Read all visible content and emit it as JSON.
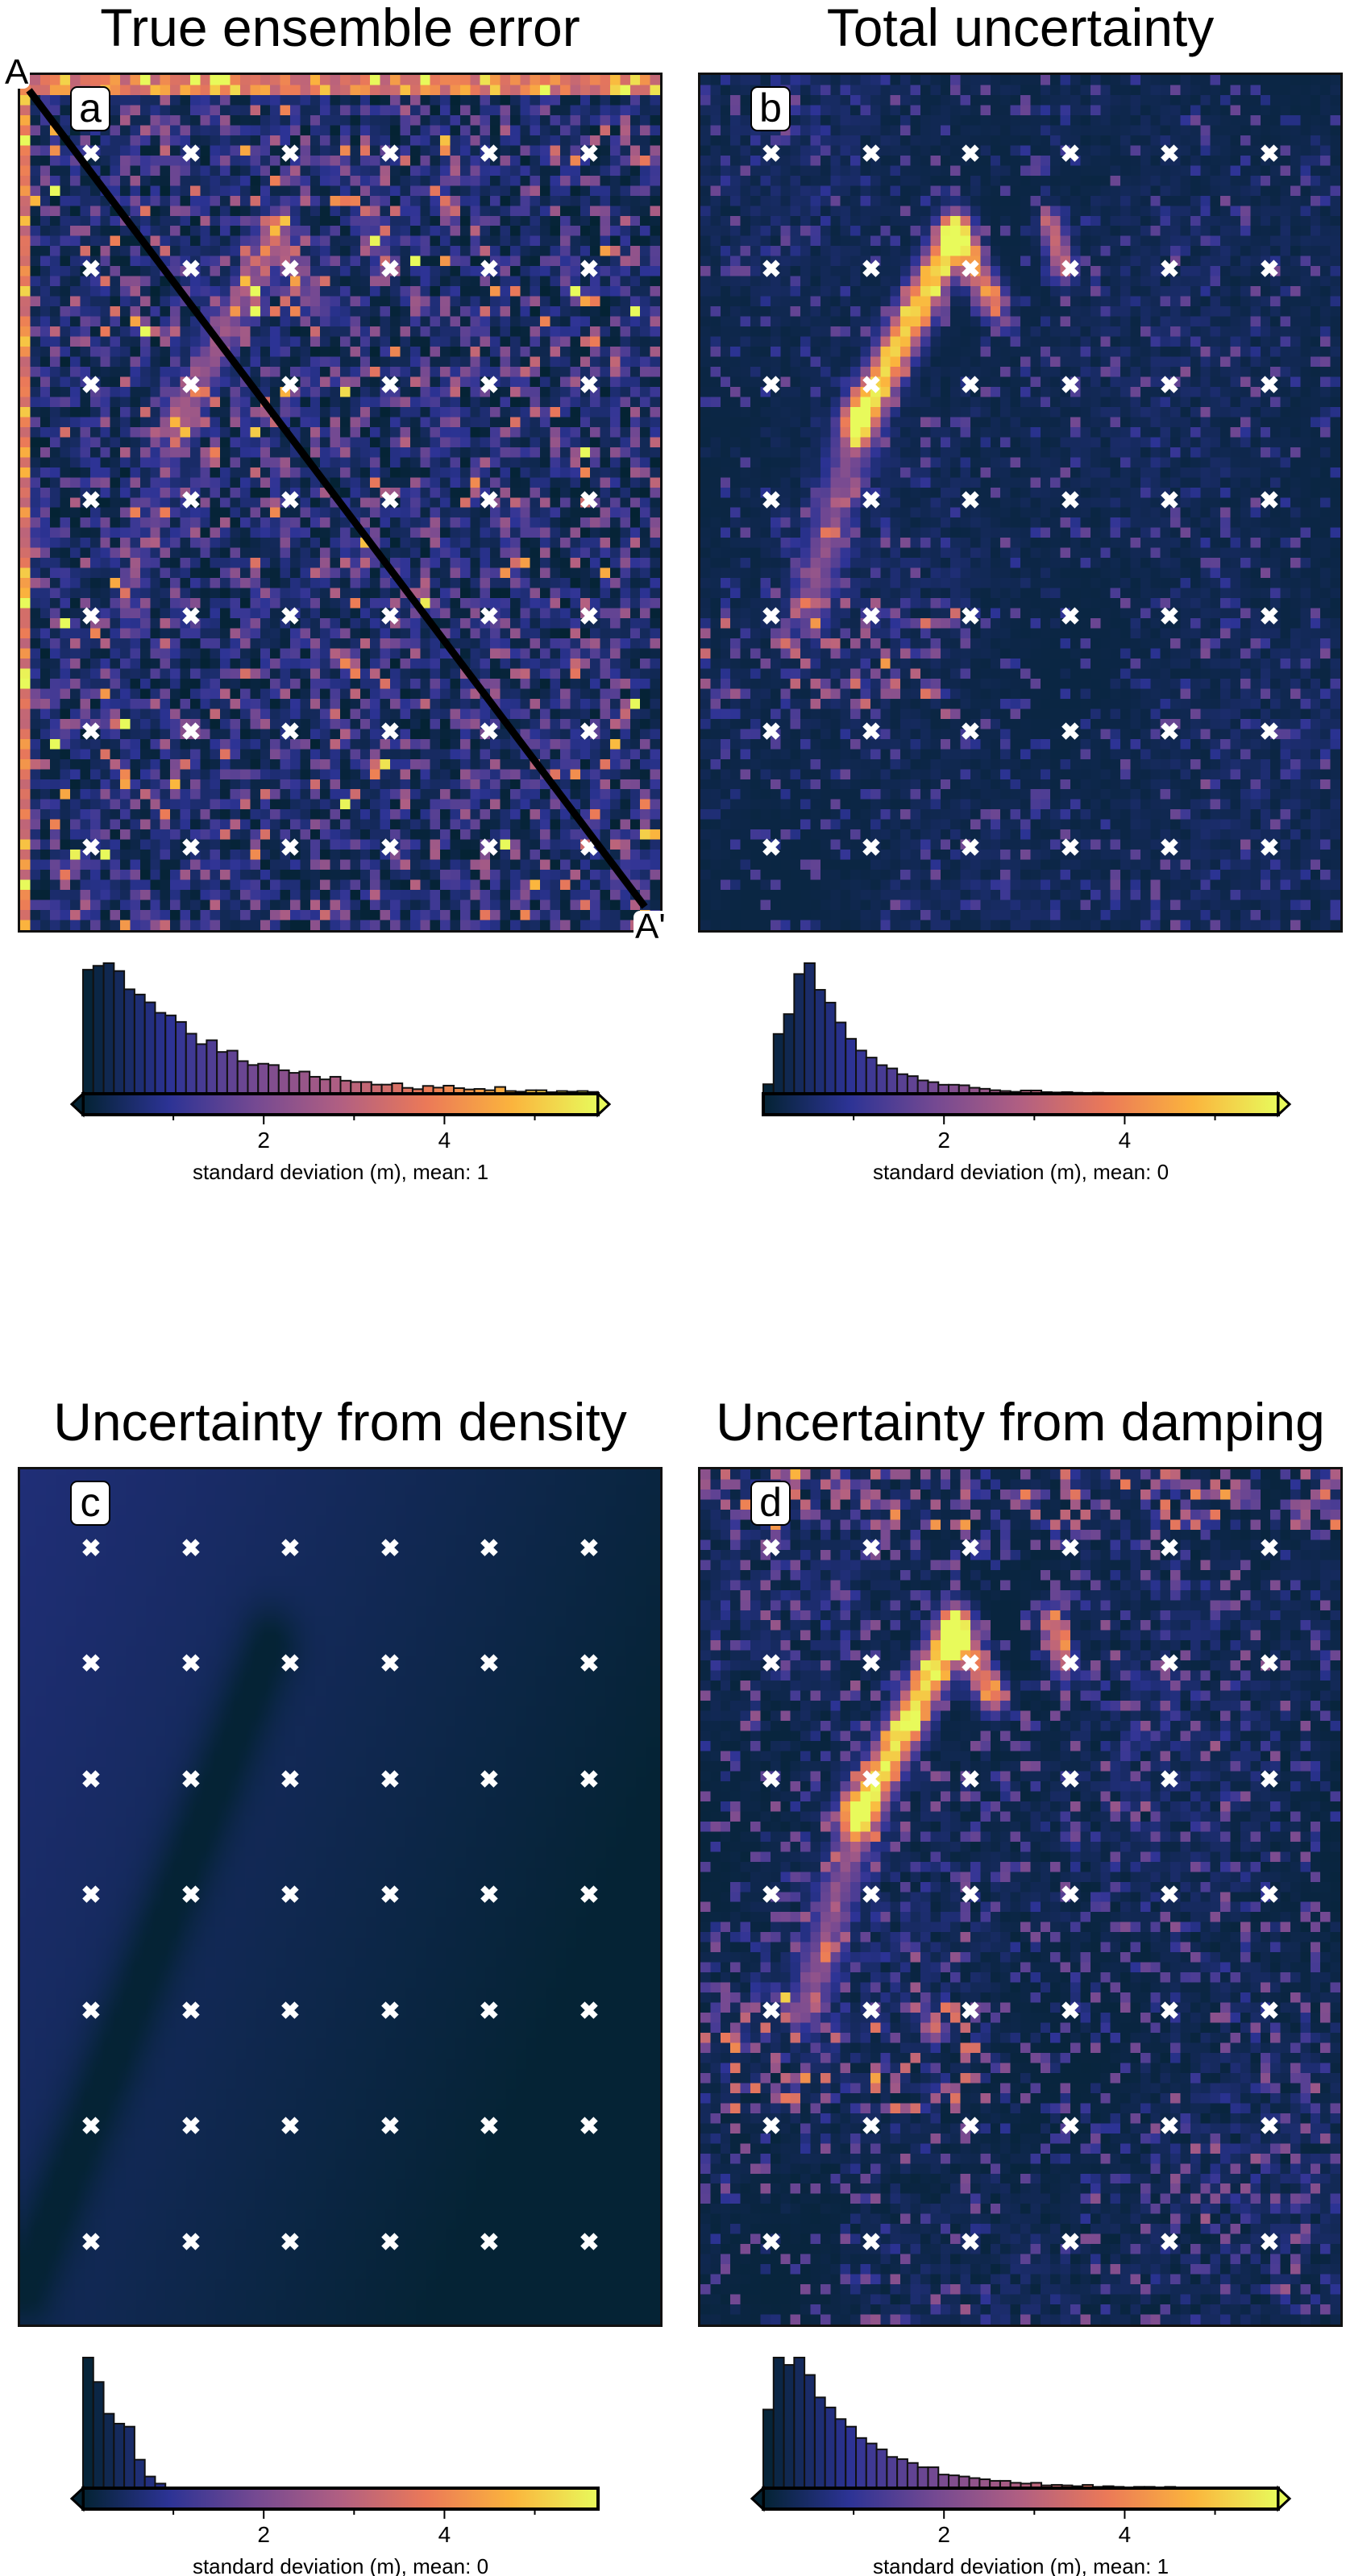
{
  "colormap": [
    "#042333",
    "#2c3395",
    "#744992",
    "#b15f82",
    "#eb7958",
    "#fbb43d",
    "#e8fa5b"
  ],
  "colorbar_range": [
    0,
    5.7
  ],
  "profile": {
    "start_label": "A",
    "end_label": "A'"
  },
  "chart_data": [
    {
      "type": "heatmap+histogram",
      "title": "True ensemble error",
      "panel_label": "a",
      "xlabel": "standard deviation (m), mean: 1",
      "tick_labels": [
        "2",
        "4"
      ],
      "ticks": [
        2,
        4
      ],
      "extend": "both",
      "histogram_bins": [
        0,
        5.7,
        50
      ],
      "histogram_relative_counts": [
        95,
        98,
        100,
        94,
        80,
        76,
        70,
        62,
        60,
        55,
        46,
        38,
        41,
        32,
        33,
        25,
        22,
        23,
        22,
        18,
        16,
        17,
        13,
        11,
        13,
        10,
        9,
        9,
        7,
        7,
        8,
        4.5,
        3.5,
        6,
        4.7,
        6.2,
        4.3,
        3.3,
        3.7,
        2.7,
        5.2,
        2.1,
        1.6,
        2.7,
        2.7,
        1.2,
        2.1,
        1.6,
        2.1,
        1.4
      ]
    },
    {
      "type": "heatmap+histogram",
      "title": "Total uncertainty",
      "panel_label": "b",
      "xlabel": "standard deviation (m), mean: 0",
      "tick_labels": [
        "2",
        "4"
      ],
      "ticks": [
        2,
        4
      ],
      "extend": "max",
      "histogram_bins": [
        0,
        5.7,
        50
      ],
      "histogram_relative_counts": [
        7.3,
        45.8,
        61,
        91.7,
        100,
        79.6,
        69.8,
        54.6,
        42.1,
        33.1,
        27.7,
        21.9,
        19.4,
        15,
        13.5,
        10.2,
        8.9,
        6.9,
        6.9,
        6.5,
        4.6,
        3.8,
        2.7,
        2.1,
        1.5,
        2.5,
        2.5,
        1.3,
        1,
        1.3,
        0.8,
        0.6,
        0.8,
        0.4,
        0.2,
        0.4,
        0,
        0,
        0,
        0,
        0,
        0,
        0,
        0,
        0,
        0,
        0,
        0,
        0,
        0
      ]
    },
    {
      "type": "heatmap+histogram",
      "title": "Uncertainty from density",
      "panel_label": "c",
      "xlabel": "standard deviation (m), mean: 0",
      "tick_labels": [
        "2",
        "4"
      ],
      "ticks": [
        2,
        4
      ],
      "extend": "min",
      "histogram_bins": [
        0,
        5.7,
        50
      ],
      "histogram_relative_counts": [
        100,
        81.3,
        57,
        49.4,
        47.1,
        21.8,
        8.9,
        3.5,
        0.6,
        0,
        0,
        0,
        0,
        0,
        0,
        0,
        0,
        0,
        0,
        0,
        0,
        0,
        0,
        0,
        0,
        0,
        0,
        0,
        0,
        0,
        0,
        0,
        0,
        0,
        0,
        0,
        0,
        0,
        0,
        0,
        0,
        0,
        0,
        0,
        0,
        0,
        0,
        0,
        0,
        0
      ]
    },
    {
      "type": "heatmap+histogram",
      "title": "Uncertainty from damping",
      "panel_label": "d",
      "xlabel": "standard deviation (m), mean: 1",
      "tick_labels": [
        "2",
        "4"
      ],
      "ticks": [
        2,
        4
      ],
      "extend": "both",
      "histogram_bins": [
        0,
        5.7,
        50
      ],
      "histogram_relative_counts": [
        60.2,
        100,
        94.4,
        100,
        86.7,
        69.5,
        61.8,
        52.9,
        47.1,
        38.4,
        34.2,
        29.7,
        23.9,
        22.2,
        19.3,
        16,
        16,
        10.4,
        9.8,
        8.9,
        7.7,
        6.8,
        5.6,
        5.6,
        4.1,
        3.5,
        4.1,
        2.1,
        2.5,
        2.1,
        1.5,
        2.5,
        1,
        1.5,
        1,
        0.6,
        1,
        1,
        0.6,
        1,
        0.6,
        0.4,
        0.4,
        0.4,
        0.4,
        0,
        0,
        0,
        0,
        0
      ]
    }
  ]
}
